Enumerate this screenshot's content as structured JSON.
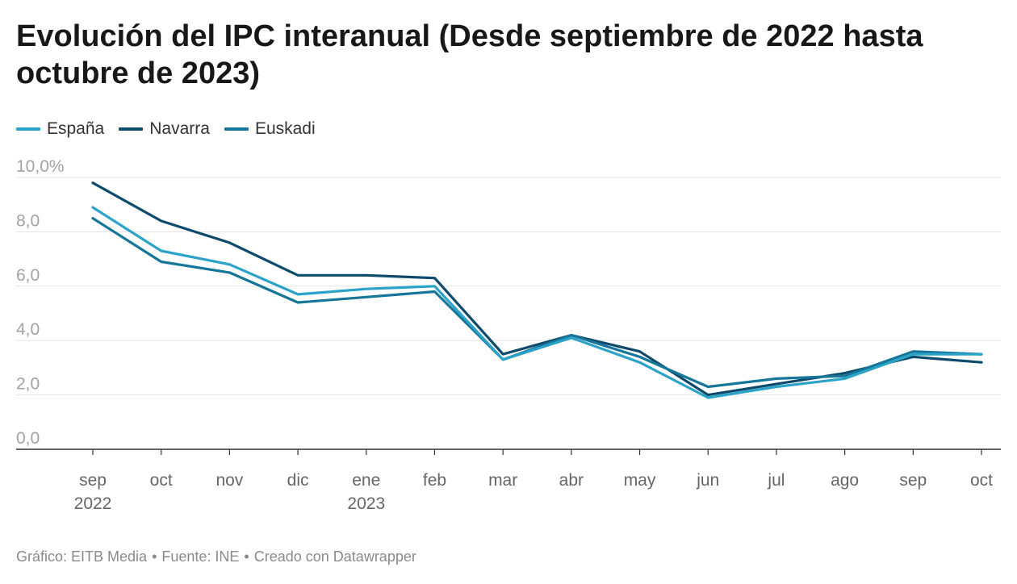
{
  "title": "Evolución del IPC interanual (Desde septiembre de 2022 hasta octubre de 2023)",
  "footer": {
    "graphic": "Gráfico: EITB Media",
    "separator": "•",
    "source": "Fuente: INE",
    "created": "Creado con Datawrapper"
  },
  "chart_data": {
    "type": "line",
    "title": "Evolución del IPC interanual (Desde septiembre de 2022 hasta octubre de 2023)",
    "xlabel": "",
    "ylabel": "",
    "ylim": [
      0,
      10
    ],
    "yticks": [
      0,
      2,
      4,
      6,
      8,
      10
    ],
    "ytick_labels": [
      "0,0",
      "2,0",
      "4,0",
      "6,0",
      "8,0",
      "10,0%"
    ],
    "grid": true,
    "legend_position": "top-left",
    "categories": [
      "sep",
      "oct",
      "nov",
      "dic",
      "ene",
      "feb",
      "mar",
      "abr",
      "may",
      "jun",
      "jul",
      "ago",
      "sep",
      "oct"
    ],
    "year_labels": [
      "2022",
      "",
      "",
      "",
      "2023",
      "",
      "",
      "",
      "",
      "",
      "",
      "",
      "",
      ""
    ],
    "series": [
      {
        "name": "España",
        "color": "#2ba3c9",
        "values": [
          8.9,
          7.3,
          6.8,
          5.7,
          5.9,
          6.0,
          3.3,
          4.1,
          3.2,
          1.9,
          2.3,
          2.6,
          3.5,
          3.5
        ]
      },
      {
        "name": "Navarra",
        "color": "#0d4a6b",
        "values": [
          9.8,
          8.4,
          7.6,
          6.4,
          6.4,
          6.3,
          3.5,
          4.2,
          3.6,
          2.0,
          2.4,
          2.8,
          3.4,
          3.2
        ]
      },
      {
        "name": "Euskadi",
        "color": "#157699",
        "values": [
          8.5,
          6.9,
          6.5,
          5.4,
          5.6,
          5.8,
          3.3,
          4.2,
          3.4,
          2.3,
          2.6,
          2.7,
          3.6,
          3.5
        ]
      }
    ]
  }
}
